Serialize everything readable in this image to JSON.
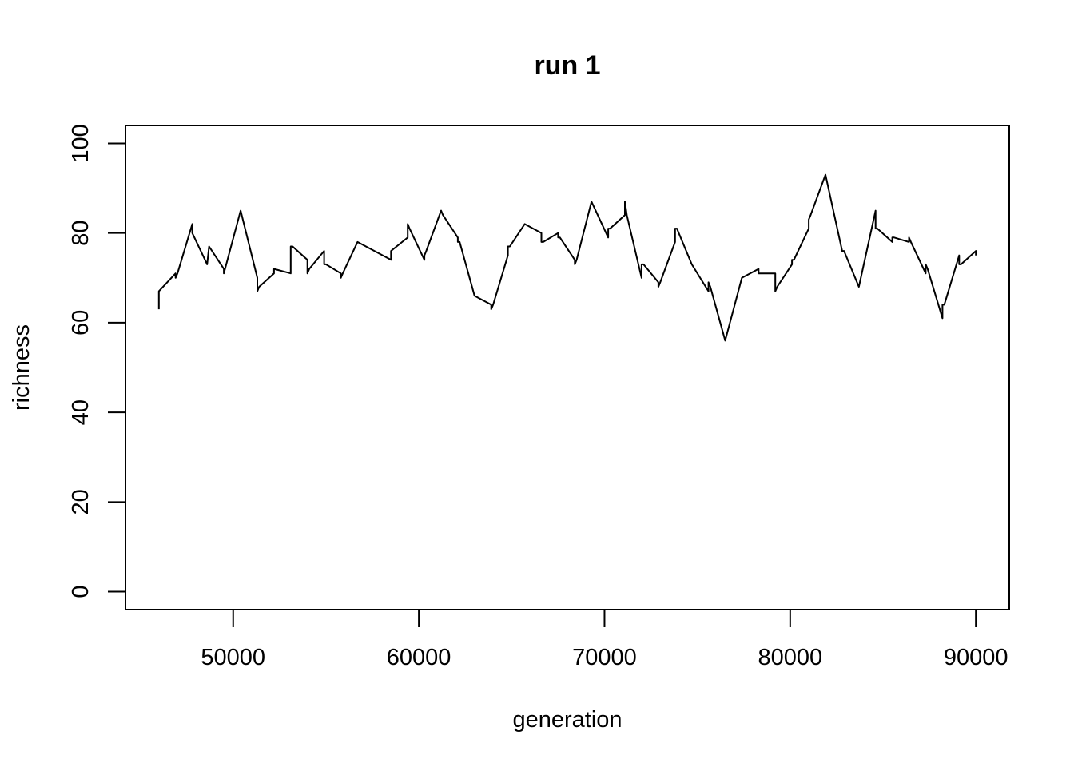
{
  "chart_data": {
    "type": "line",
    "title": "run 1",
    "xlabel": "generation",
    "ylabel": "richness",
    "xlim": [
      44200,
      91800
    ],
    "ylim": [
      -4,
      104
    ],
    "xticks": [
      50000,
      60000,
      70000,
      80000,
      90000
    ],
    "yticks": [
      0,
      20,
      40,
      60,
      80,
      100
    ],
    "grid": false,
    "legend": "none",
    "line_color": "#000000",
    "x": [
      46000,
      46000,
      46900,
      46900,
      47000,
      47800,
      47800,
      48600,
      48700,
      49500,
      49500,
      50400,
      51300,
      51300,
      51400,
      52200,
      52200,
      53100,
      53100,
      53200,
      54000,
      54000,
      54100,
      54900,
      54900,
      55000,
      55800,
      55800,
      55900,
      56700,
      58500,
      58500,
      59400,
      59400,
      59500,
      60300,
      60300,
      60400,
      61200,
      61300,
      62100,
      62100,
      62200,
      63000,
      63900,
      63900,
      64000,
      64800,
      64800,
      64900,
      65700,
      66600,
      66600,
      66700,
      67500,
      67500,
      67600,
      68400,
      68400,
      68500,
      69300,
      70200,
      70200,
      70300,
      71100,
      71100,
      71200,
      72000,
      72000,
      72100,
      72900,
      72900,
      73000,
      73800,
      73800,
      73900,
      74700,
      75600,
      75600,
      75700,
      76500,
      77400,
      78300,
      78300,
      78400,
      79200,
      79200,
      79300,
      80100,
      80100,
      80200,
      81000,
      81000,
      81100,
      81900,
      82800,
      82800,
      82900,
      83700,
      84600,
      84600,
      84700,
      85500,
      85500,
      85600,
      86400,
      86400,
      86500,
      87300,
      87300,
      87400,
      88200,
      88200,
      88300,
      89100,
      89100,
      89200,
      90000,
      90000
    ],
    "y": [
      63,
      67,
      71,
      70,
      71,
      82,
      80,
      73,
      77,
      72,
      71,
      85,
      70,
      67,
      68,
      71,
      72,
      71,
      77,
      77,
      74,
      71,
      72,
      76,
      73,
      73,
      71,
      70,
      71,
      78,
      74,
      76,
      79,
      82,
      81,
      74,
      75,
      76,
      85,
      84,
      79,
      78,
      78,
      66,
      64,
      63,
      64,
      75,
      77,
      77,
      82,
      80,
      78,
      78,
      80,
      79,
      79,
      74,
      73,
      74,
      87,
      79,
      81,
      81,
      84,
      87,
      84,
      70,
      73,
      73,
      69,
      68,
      69,
      78,
      81,
      81,
      73,
      67,
      69,
      68,
      56,
      70,
      72,
      71,
      71,
      71,
      67,
      68,
      73,
      74,
      74,
      81,
      83,
      84,
      93,
      76,
      76,
      76,
      68,
      85,
      81,
      81,
      78,
      79,
      79,
      78,
      79,
      78,
      71,
      73,
      72,
      61,
      64,
      64,
      75,
      73,
      73,
      76,
      75
    ]
  }
}
